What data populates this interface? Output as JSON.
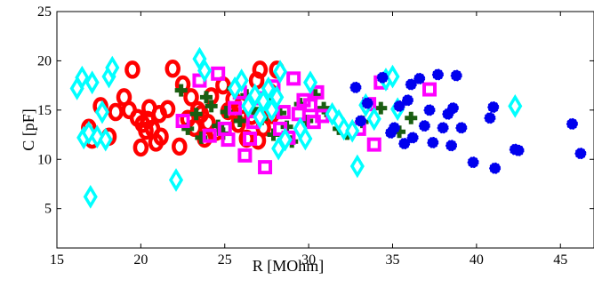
{
  "chart_data": {
    "type": "scatter",
    "xlabel": "R [MOhm]",
    "ylabel": "C [pF]",
    "xlim": [
      15,
      47
    ],
    "ylim": [
      1,
      25
    ],
    "xticks": [
      15,
      20,
      25,
      30,
      35,
      40,
      45
    ],
    "yticks": [
      5,
      10,
      15,
      20,
      25
    ],
    "grid": false,
    "series": [
      {
        "marker": "ring",
        "color": "#ff0000",
        "points": [
          [
            16.9,
            13.2
          ],
          [
            17.1,
            12.0
          ],
          [
            17.6,
            15.4
          ],
          [
            18.1,
            12.3
          ],
          [
            18.5,
            14.8
          ],
          [
            19.0,
            16.3
          ],
          [
            19.3,
            15.0
          ],
          [
            19.5,
            19.1
          ],
          [
            19.8,
            14.2
          ],
          [
            20.0,
            11.2
          ],
          [
            20.1,
            13.6
          ],
          [
            20.3,
            12.9
          ],
          [
            20.4,
            14.0
          ],
          [
            20.5,
            15.2
          ],
          [
            20.7,
            13.1
          ],
          [
            20.9,
            11.7
          ],
          [
            21.1,
            14.6
          ],
          [
            21.2,
            12.3
          ],
          [
            21.6,
            15.1
          ],
          [
            21.9,
            19.2
          ],
          [
            22.3,
            11.3
          ],
          [
            22.5,
            17.6
          ],
          [
            22.8,
            14.1
          ],
          [
            23.0,
            16.3
          ],
          [
            23.2,
            13.2
          ],
          [
            23.4,
            15.0
          ],
          [
            23.6,
            14.6
          ],
          [
            23.8,
            12.1
          ],
          [
            24.0,
            13.7
          ],
          [
            24.2,
            16.4
          ],
          [
            24.5,
            12.8
          ],
          [
            24.9,
            17.5
          ],
          [
            25.2,
            14.9
          ],
          [
            25.5,
            16.1
          ],
          [
            25.8,
            13.6
          ],
          [
            26.0,
            15.5
          ],
          [
            26.3,
            12.1
          ],
          [
            26.6,
            14.4
          ],
          [
            26.9,
            18.0
          ],
          [
            27.0,
            11.9
          ],
          [
            27.1,
            19.1
          ],
          [
            27.3,
            13.2
          ],
          [
            27.5,
            15.6
          ],
          [
            27.7,
            16.8
          ],
          [
            27.8,
            14.5
          ],
          [
            28.1,
            19.1
          ]
        ]
      },
      {
        "marker": "plus",
        "color": "#1a5e12",
        "points": [
          [
            22.4,
            17.0
          ],
          [
            22.8,
            13.1
          ],
          [
            23.3,
            14.6
          ],
          [
            23.6,
            12.2
          ],
          [
            23.9,
            16.3
          ],
          [
            24.2,
            15.4
          ],
          [
            24.6,
            13.4
          ],
          [
            24.9,
            12.6
          ],
          [
            25.1,
            14.8
          ],
          [
            25.5,
            17.2
          ],
          [
            25.9,
            13.9
          ],
          [
            26.3,
            16.5
          ],
          [
            26.7,
            15.1
          ],
          [
            27.2,
            14.1
          ],
          [
            27.6,
            16.0
          ],
          [
            27.9,
            12.5
          ],
          [
            28.3,
            14.7
          ],
          [
            28.7,
            13.3
          ],
          [
            29.0,
            11.8
          ],
          [
            29.5,
            15.6
          ],
          [
            29.9,
            13.9
          ],
          [
            30.4,
            16.5
          ],
          [
            30.9,
            15.2
          ],
          [
            31.3,
            14.5
          ],
          [
            31.8,
            13.1
          ],
          [
            32.3,
            12.6
          ],
          [
            33.2,
            13.8
          ],
          [
            34.3,
            15.2
          ],
          [
            35.4,
            12.8
          ],
          [
            36.1,
            14.2
          ]
        ]
      },
      {
        "marker": "square",
        "color": "#ff00ff",
        "points": [
          [
            22.5,
            13.9
          ],
          [
            23.5,
            18.0
          ],
          [
            24.1,
            12.4
          ],
          [
            24.6,
            18.7
          ],
          [
            25.0,
            13.1
          ],
          [
            25.2,
            12.0
          ],
          [
            25.6,
            15.2
          ],
          [
            25.9,
            16.8
          ],
          [
            26.2,
            10.4
          ],
          [
            26.5,
            12.1
          ],
          [
            26.7,
            13.8
          ],
          [
            27.0,
            16.2
          ],
          [
            27.4,
            9.2
          ],
          [
            27.9,
            17.4
          ],
          [
            28.3,
            13.1
          ],
          [
            28.5,
            14.8
          ],
          [
            28.8,
            12.2
          ],
          [
            29.1,
            18.2
          ],
          [
            29.4,
            14.6
          ],
          [
            29.7,
            16.0
          ],
          [
            30.1,
            15.5
          ],
          [
            30.3,
            13.8
          ],
          [
            30.5,
            16.8
          ],
          [
            30.8,
            14.4
          ],
          [
            33.0,
            13.1
          ],
          [
            33.6,
            15.6
          ],
          [
            33.9,
            11.5
          ],
          [
            34.3,
            17.8
          ],
          [
            37.2,
            17.1
          ]
        ]
      },
      {
        "marker": "diamond",
        "color": "#00ffff",
        "points": [
          [
            16.2,
            17.2
          ],
          [
            16.5,
            18.3
          ],
          [
            16.6,
            12.2
          ],
          [
            16.9,
            12.7
          ],
          [
            17.0,
            6.2
          ],
          [
            17.1,
            17.8
          ],
          [
            17.4,
            12.3
          ],
          [
            17.7,
            14.8
          ],
          [
            17.9,
            12.0
          ],
          [
            18.1,
            18.4
          ],
          [
            18.3,
            19.3
          ],
          [
            22.1,
            7.9
          ],
          [
            23.5,
            20.2
          ],
          [
            23.8,
            19.0
          ],
          [
            25.6,
            17.2
          ],
          [
            26.0,
            18.0
          ],
          [
            26.4,
            15.4
          ],
          [
            26.8,
            16.5
          ],
          [
            27.1,
            14.3
          ],
          [
            27.3,
            15.9
          ],
          [
            27.6,
            17.2
          ],
          [
            27.8,
            15.0
          ],
          [
            28.1,
            16.3
          ],
          [
            28.3,
            18.9
          ],
          [
            28.6,
            12.0
          ],
          [
            28.2,
            11.1
          ],
          [
            29.5,
            13.1
          ],
          [
            29.8,
            12.1
          ],
          [
            30.1,
            17.8
          ],
          [
            31.4,
            14.6
          ],
          [
            31.8,
            13.9
          ],
          [
            32.1,
            13.1
          ],
          [
            32.6,
            12.9
          ],
          [
            32.9,
            9.3
          ],
          [
            33.4,
            15.5
          ],
          [
            33.9,
            14.1
          ],
          [
            34.6,
            18.1
          ],
          [
            35.0,
            18.4
          ],
          [
            35.3,
            15.1
          ],
          [
            42.3,
            15.4
          ]
        ]
      },
      {
        "marker": "blob",
        "color": "#0000ee",
        "points": [
          [
            32.8,
            17.3
          ],
          [
            33.1,
            13.9
          ],
          [
            33.5,
            15.7
          ],
          [
            34.4,
            18.3
          ],
          [
            34.9,
            12.7
          ],
          [
            35.1,
            13.2
          ],
          [
            35.4,
            15.4
          ],
          [
            35.7,
            11.6
          ],
          [
            35.9,
            16.0
          ],
          [
            36.1,
            17.6
          ],
          [
            36.2,
            12.2
          ],
          [
            36.6,
            18.2
          ],
          [
            36.9,
            13.4
          ],
          [
            37.2,
            15.0
          ],
          [
            37.4,
            11.7
          ],
          [
            37.7,
            18.6
          ],
          [
            38.0,
            13.2
          ],
          [
            38.3,
            14.6
          ],
          [
            38.5,
            11.4
          ],
          [
            38.6,
            15.2
          ],
          [
            38.8,
            18.5
          ],
          [
            39.1,
            13.2
          ],
          [
            39.8,
            9.7
          ],
          [
            40.8,
            14.2
          ],
          [
            41.0,
            15.3
          ],
          [
            41.1,
            9.1
          ],
          [
            42.3,
            11.0
          ],
          [
            42.5,
            10.9
          ],
          [
            45.7,
            13.6
          ],
          [
            46.2,
            10.6
          ]
        ]
      }
    ]
  }
}
